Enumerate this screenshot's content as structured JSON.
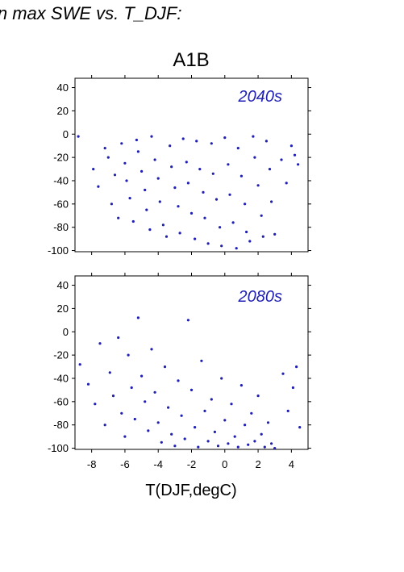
{
  "header": {
    "text": "in max SWE vs. T_DJF:"
  },
  "chart_data": [
    {
      "type": "scatter",
      "title": "A1B",
      "panel_label": "2040s",
      "xlabel": "T(DJF,degC)",
      "ylabel": "",
      "xlim": [
        -9,
        5
      ],
      "ylim": [
        -101,
        48
      ],
      "xticks": [
        -8,
        -6,
        -4,
        -2,
        0,
        2,
        4
      ],
      "yticks": [
        40,
        20,
        0,
        -20,
        -40,
        -60,
        -80,
        -100
      ],
      "grid": false,
      "point_color": "#1f1fb4",
      "series": [
        {
          "x": [
            -8.8,
            -7.9,
            -7.6,
            -7.2,
            -7.0,
            -6.8,
            -6.6,
            -6.4,
            -6.2,
            -6.0,
            -5.9,
            -5.7,
            -5.5,
            -5.3,
            -5.2,
            -5.0,
            -4.8,
            -4.7,
            -4.5,
            -4.4,
            -4.2,
            -4.0,
            -3.9,
            -3.7,
            -3.5,
            -3.3,
            -3.2,
            -3.0,
            -2.8,
            -2.7,
            -2.5,
            -2.3,
            -2.2,
            -2.0,
            -1.8,
            -1.7,
            -1.5,
            -1.3,
            -1.2,
            -1.0,
            -0.8,
            -0.7,
            -0.5,
            -0.3,
            -0.2,
            0.0,
            0.2,
            0.3,
            0.5,
            0.7,
            0.8,
            1.0,
            1.2,
            1.3,
            1.5,
            1.7,
            1.8,
            2.0,
            2.2,
            2.3,
            2.5,
            2.7,
            2.8,
            3.0,
            3.4,
            3.7,
            4.0,
            4.2,
            4.4
          ],
          "y": [
            -2,
            -30,
            -45,
            -12,
            -20,
            -60,
            -35,
            -72,
            -8,
            -25,
            -40,
            -55,
            -75,
            -5,
            -15,
            -32,
            -48,
            -65,
            -82,
            -2,
            -22,
            -38,
            -58,
            -78,
            -88,
            -10,
            -28,
            -46,
            -62,
            -85,
            -4,
            -24,
            -42,
            -68,
            -90,
            -6,
            -30,
            -50,
            -72,
            -94,
            -8,
            -34,
            -56,
            -80,
            -96,
            -3,
            -26,
            -52,
            -76,
            -98,
            -12,
            -36,
            -60,
            -84,
            -92,
            -2,
            -20,
            -44,
            -70,
            -88,
            -6,
            -30,
            -58,
            -86,
            -22,
            -42,
            -10,
            -18,
            -26
          ]
        }
      ]
    },
    {
      "type": "scatter",
      "title": "",
      "panel_label": "2080s",
      "xlabel": "T(DJF,degC)",
      "ylabel": "",
      "xlim": [
        -9,
        5
      ],
      "ylim": [
        -101,
        48
      ],
      "xticks": [
        -8,
        -6,
        -4,
        -2,
        0,
        2,
        4
      ],
      "yticks": [
        40,
        20,
        0,
        -20,
        -40,
        -60,
        -80,
        -100
      ],
      "grid": false,
      "point_color": "#1f1fb4",
      "series": [
        {
          "x": [
            -8.7,
            -8.2,
            -7.8,
            -7.5,
            -7.2,
            -6.9,
            -6.7,
            -6.4,
            -6.2,
            -6.0,
            -5.8,
            -5.6,
            -5.4,
            -5.2,
            -5.0,
            -4.8,
            -4.6,
            -4.4,
            -4.2,
            -4.0,
            -3.8,
            -3.6,
            -3.4,
            -3.2,
            -3.0,
            -2.8,
            -2.6,
            -2.4,
            -2.2,
            -2.0,
            -1.8,
            -1.6,
            -1.4,
            -1.2,
            -1.0,
            -0.8,
            -0.6,
            -0.4,
            -0.2,
            0.0,
            0.2,
            0.4,
            0.6,
            0.8,
            1.0,
            1.2,
            1.4,
            1.6,
            1.8,
            2.0,
            2.2,
            2.4,
            2.6,
            2.8,
            3.0,
            3.5,
            3.8,
            4.1,
            4.3,
            4.5
          ],
          "y": [
            -28,
            -45,
            -62,
            -10,
            -80,
            -35,
            -55,
            -5,
            -70,
            -90,
            -20,
            -48,
            -75,
            12,
            -38,
            -60,
            -85,
            -15,
            -52,
            -78,
            -95,
            -30,
            -65,
            -88,
            -98,
            -42,
            -72,
            -92,
            10,
            -50,
            -82,
            -99,
            -25,
            -68,
            -94,
            -58,
            -86,
            -98,
            -40,
            -76,
            -96,
            -62,
            -90,
            -99,
            -46,
            -80,
            -97,
            -70,
            -94,
            -55,
            -88,
            -99,
            -78,
            -96,
            -100,
            -36,
            -68,
            -48,
            -30,
            -82
          ]
        }
      ]
    }
  ]
}
